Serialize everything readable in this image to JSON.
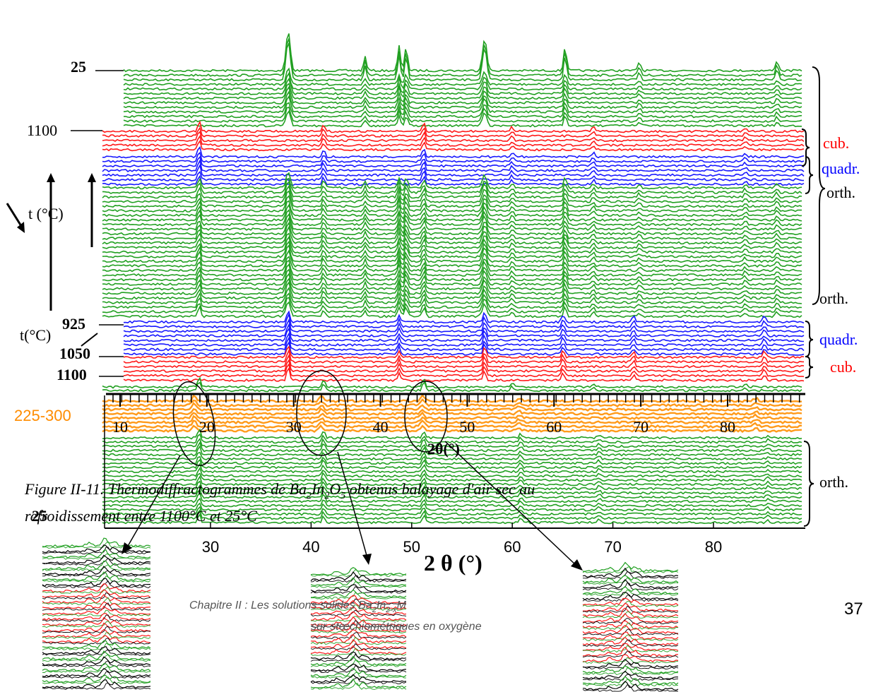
{
  "figure": {
    "left_labels": {
      "top_25": "25",
      "top_1100": "1100",
      "t_up": "t (°C)",
      "t_925": "925",
      "t_down": "t(°C)",
      "t_1050": "1050",
      "t_1100": "1100",
      "orange": "225-300",
      "bottom_25": "25"
    },
    "inner_axis": {
      "ticks": [
        10,
        20,
        30,
        40,
        50,
        60,
        70,
        80
      ],
      "label": "2θ(°)"
    },
    "outer_axis": {
      "ticks": [
        30,
        40,
        50,
        60,
        70,
        80
      ],
      "label": "2 θ (°)"
    },
    "phases": [
      "cub.",
      "quadr.",
      "orth.",
      "orth.",
      "quadr.",
      "cub.",
      "orth."
    ]
  },
  "caption": {
    "parts": [
      "Figure II-11. Thermodiffractogrammes de Ba",
      "2",
      "In",
      "2",
      "O",
      "5",
      " obtenus balayage d'air sec au",
      "refroidissement entre 1100°C et 25°C"
    ]
  },
  "footer": {
    "line1": [
      "Chapitre II : Les solutions solides Ba",
      "2",
      "In",
      "2-x",
      "M"
    ],
    "line2": "sur-stœchiométriques en oxygène"
  },
  "page_number": "37"
}
